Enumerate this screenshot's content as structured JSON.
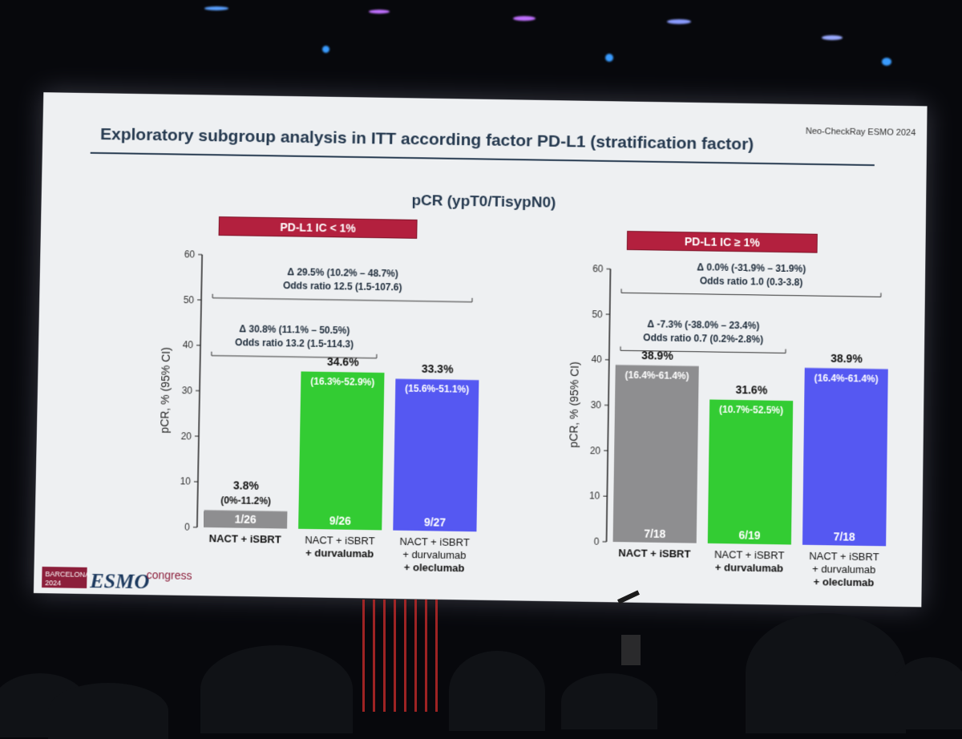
{
  "slide": {
    "corner_label": "Neo-CheckRay ESMO 2024",
    "title": "Exploratory subgroup analysis in ITT according factor PD-L1 (stratification factor)",
    "subtitle": "pCR (ypT0/TisypN0)",
    "logo": {
      "city": "BARCELONA",
      "year": "2024",
      "brand": "ESMO",
      "suffix": "congress"
    },
    "colors": {
      "title": "#25394f",
      "badge": "#b3203e",
      "gray_bar": "#8e8e90",
      "green_bar": "#33cc33",
      "blue_bar": "#5558f2"
    }
  },
  "chart_data": [
    {
      "type": "bar",
      "panel_label": "PD-L1 IC < 1%",
      "ylabel": "pCR, % (95% CI)",
      "ylim": [
        0,
        60
      ],
      "yticks": [
        "0",
        "10",
        "20",
        "30",
        "40",
        "50",
        "60"
      ],
      "categories": [
        {
          "lines": [
            "NACT + iSBRT"
          ],
          "bold": [
            true
          ]
        },
        {
          "lines": [
            "NACT + iSBRT",
            "+ durvalumab"
          ],
          "bold": [
            false,
            true
          ]
        },
        {
          "lines": [
            "NACT + iSBRT",
            "+ durvalumab",
            "+ oleclumab"
          ],
          "bold": [
            false,
            false,
            true
          ]
        }
      ],
      "values": [
        3.8,
        34.6,
        33.3
      ],
      "value_labels": [
        "3.8%",
        "34.6%",
        "33.3%"
      ],
      "ci_labels": [
        "(0%-11.2%)",
        "(16.3%-52.9%)",
        "(15.6%-51.1%)"
      ],
      "counts": [
        "1/26",
        "9/26",
        "9/27"
      ],
      "bar_colors": [
        "#8e8e90",
        "#33cc33",
        "#5558f2"
      ],
      "comparisons": [
        {
          "line1": "Δ 30.8% (11.1% – 50.5%)",
          "line2": "Odds ratio 13.2 (1.5-114.3)",
          "from": 0,
          "to": 1
        },
        {
          "line1": "Δ 29.5% (10.2% – 48.7%)",
          "line2": "Odds ratio 12.5 (1.5-107.6)",
          "from": 0,
          "to": 2
        }
      ]
    },
    {
      "type": "bar",
      "panel_label": "PD-L1 IC ≥ 1%",
      "ylabel": "pCR, % (95% CI)",
      "ylim": [
        0,
        60
      ],
      "yticks": [
        "0",
        "10",
        "20",
        "30",
        "40",
        "50",
        "60"
      ],
      "categories": [
        {
          "lines": [
            "NACT + iSBRT"
          ],
          "bold": [
            true
          ]
        },
        {
          "lines": [
            "NACT + iSBRT",
            "+ durvalumab"
          ],
          "bold": [
            false,
            true
          ]
        },
        {
          "lines": [
            "NACT + iSBRT",
            "+ durvalumab",
            "+ oleclumab"
          ],
          "bold": [
            false,
            false,
            true
          ]
        }
      ],
      "values": [
        38.9,
        31.6,
        38.9
      ],
      "value_labels": [
        "38.9%",
        "31.6%",
        "38.9%"
      ],
      "ci_labels": [
        "(16.4%-61.4%)",
        "(10.7%-52.5%)",
        "(16.4%-61.4%)"
      ],
      "counts": [
        "7/18",
        "6/19",
        "7/18"
      ],
      "bar_colors": [
        "#8e8e90",
        "#33cc33",
        "#5558f2"
      ],
      "comparisons": [
        {
          "line1": "Δ -7.3% (-38.0% – 23.4%)",
          "line2": "Odds ratio 0.7 (0.2%-2.8%)",
          "from": 0,
          "to": 1
        },
        {
          "line1": "Δ 0.0% (-31.9% – 31.9%)",
          "line2": "Odds ratio 1.0 (0.3-3.8)",
          "from": 0,
          "to": 2
        }
      ]
    }
  ]
}
